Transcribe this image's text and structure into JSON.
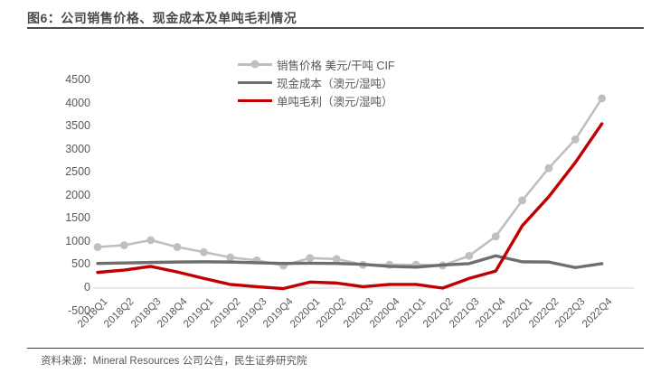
{
  "header": {
    "title": "图6：公司销售价格、现金成本及单吨毛利情况"
  },
  "footer": {
    "source": "资料来源：Mineral Resources 公司公告，民生证券研究院"
  },
  "colors": {
    "sales_line": "#bfbfbf",
    "cost_line": "#6e6e6e",
    "profit_line": "#c00000",
    "title_text": "#4a4a4a",
    "axis_text": "#595959",
    "zero_gridline": "#d9d9d9"
  },
  "chart_data": {
    "type": "line",
    "title": "",
    "xlabel": "",
    "ylabel": "",
    "ylim": [
      -500,
      4500
    ],
    "yticks": [
      4500,
      4000,
      3500,
      3000,
      2500,
      2000,
      1500,
      1000,
      500,
      0,
      -500
    ],
    "grid": "zero-line-only",
    "legend_position": "top",
    "categories": [
      "2018Q1",
      "2018Q2",
      "2018Q3",
      "2018Q4",
      "2019Q1",
      "2019Q2",
      "2019Q3",
      "2019Q4",
      "2020Q1",
      "2020Q2",
      "2020Q3",
      "2020Q4",
      "2021Q1",
      "2021Q2",
      "2021Q3",
      "2021Q4",
      "2022Q1",
      "2022Q2",
      "2022Q3",
      "2022Q4"
    ],
    "series": [
      {
        "name": "销售价格 美元/干吨 CIF",
        "color": "#bfbfbf",
        "marker": true,
        "values": [
          890,
          930,
          1040,
          890,
          780,
          665,
          600,
          490,
          650,
          630,
          505,
          505,
          505,
          490,
          700,
          1120,
          1900,
          2600,
          3220,
          4110
        ]
      },
      {
        "name": "现金成本（澳元/湿吨）",
        "color": "#6e6e6e",
        "marker": false,
        "values": [
          535,
          545,
          555,
          565,
          570,
          565,
          550,
          535,
          540,
          535,
          515,
          470,
          455,
          500,
          530,
          700,
          570,
          565,
          445,
          530
        ]
      },
      {
        "name": "单吨毛利（澳元/湿吨）",
        "color": "#c00000",
        "marker": false,
        "values": [
          340,
          390,
          470,
          350,
          210,
          80,
          30,
          -10,
          130,
          110,
          30,
          80,
          80,
          0,
          210,
          370,
          1350,
          1980,
          2720,
          3560
        ]
      }
    ]
  }
}
